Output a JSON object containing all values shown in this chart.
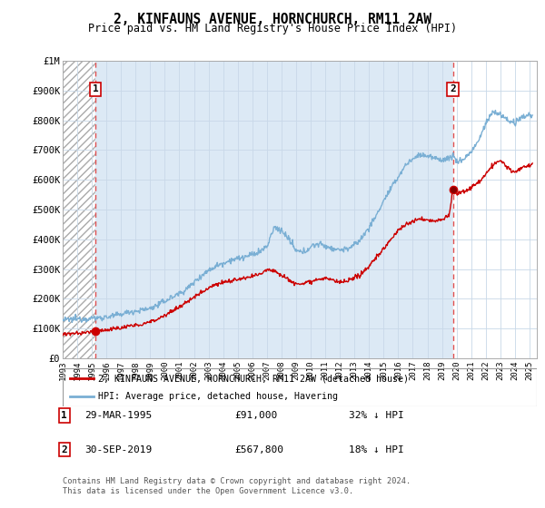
{
  "title": "2, KINFAUNS AVENUE, HORNCHURCH, RM11 2AW",
  "subtitle": "Price paid vs. HM Land Registry's House Price Index (HPI)",
  "ylim": [
    0,
    1000000
  ],
  "yticks": [
    0,
    100000,
    200000,
    300000,
    400000,
    500000,
    600000,
    700000,
    800000,
    900000,
    1000000
  ],
  "ytick_labels": [
    "£0",
    "£100K",
    "£200K",
    "£300K",
    "£400K",
    "£500K",
    "£600K",
    "£700K",
    "£800K",
    "£900K",
    "£1M"
  ],
  "xlim_start": 1993.0,
  "xlim_end": 2025.5,
  "xticks": [
    1993,
    1994,
    1995,
    1996,
    1997,
    1998,
    1999,
    2000,
    2001,
    2002,
    2003,
    2004,
    2005,
    2006,
    2007,
    2008,
    2009,
    2010,
    2011,
    2012,
    2013,
    2014,
    2015,
    2016,
    2017,
    2018,
    2019,
    2020,
    2021,
    2022,
    2023,
    2024,
    2025
  ],
  "sale1_year": 1995.24,
  "sale1_price": 91000,
  "sale2_year": 2019.75,
  "sale2_price": 567800,
  "sale1_label": "1",
  "sale2_label": "2",
  "sale1_date": "29-MAR-1995",
  "sale1_amount": "£91,000",
  "sale1_hpi": "32% ↓ HPI",
  "sale2_date": "30-SEP-2019",
  "sale2_amount": "£567,800",
  "sale2_hpi": "18% ↓ HPI",
  "legend_line1": "2, KINFAUNS AVENUE, HORNCHURCH, RM11 2AW (detached house)",
  "legend_line2": "HPI: Average price, detached house, Havering",
  "footer": "Contains HM Land Registry data © Crown copyright and database right 2024.\nThis data is licensed under the Open Government Licence v3.0.",
  "line_color_red": "#cc0000",
  "line_color_blue": "#7aafd4",
  "background_blue": "#dce9f5",
  "grid_color": "#c8d8e8",
  "dashed_line_color": "#e05050",
  "hpi_anchors": [
    [
      1993.0,
      128000
    ],
    [
      1993.5,
      130000
    ],
    [
      1994.0,
      132000
    ],
    [
      1994.5,
      133000
    ],
    [
      1995.0,
      134000
    ],
    [
      1995.5,
      136000
    ],
    [
      1996.0,
      138000
    ],
    [
      1996.5,
      142000
    ],
    [
      1997.0,
      148000
    ],
    [
      1997.5,
      155000
    ],
    [
      1998.0,
      158000
    ],
    [
      1998.5,
      162000
    ],
    [
      1999.0,
      168000
    ],
    [
      1999.5,
      178000
    ],
    [
      2000.0,
      192000
    ],
    [
      2000.5,
      205000
    ],
    [
      2001.0,
      218000
    ],
    [
      2001.5,
      232000
    ],
    [
      2002.0,
      255000
    ],
    [
      2002.5,
      278000
    ],
    [
      2003.0,
      295000
    ],
    [
      2003.5,
      310000
    ],
    [
      2004.0,
      320000
    ],
    [
      2004.5,
      330000
    ],
    [
      2005.0,
      335000
    ],
    [
      2005.5,
      340000
    ],
    [
      2006.0,
      348000
    ],
    [
      2006.5,
      358000
    ],
    [
      2007.0,
      375000
    ],
    [
      2007.5,
      440000
    ],
    [
      2008.0,
      430000
    ],
    [
      2008.5,
      400000
    ],
    [
      2009.0,
      360000
    ],
    [
      2009.5,
      355000
    ],
    [
      2010.0,
      375000
    ],
    [
      2010.5,
      385000
    ],
    [
      2011.0,
      378000
    ],
    [
      2011.5,
      368000
    ],
    [
      2012.0,
      365000
    ],
    [
      2012.5,
      368000
    ],
    [
      2013.0,
      380000
    ],
    [
      2013.5,
      405000
    ],
    [
      2014.0,
      440000
    ],
    [
      2014.5,
      480000
    ],
    [
      2015.0,
      530000
    ],
    [
      2015.5,
      570000
    ],
    [
      2016.0,
      610000
    ],
    [
      2016.5,
      650000
    ],
    [
      2017.0,
      670000
    ],
    [
      2017.5,
      685000
    ],
    [
      2018.0,
      680000
    ],
    [
      2018.5,
      672000
    ],
    [
      2019.0,
      668000
    ],
    [
      2019.5,
      672000
    ],
    [
      2019.75,
      685000
    ],
    [
      2020.0,
      660000
    ],
    [
      2020.5,
      670000
    ],
    [
      2021.0,
      695000
    ],
    [
      2021.5,
      730000
    ],
    [
      2022.0,
      790000
    ],
    [
      2022.5,
      830000
    ],
    [
      2023.0,
      820000
    ],
    [
      2023.5,
      800000
    ],
    [
      2024.0,
      790000
    ],
    [
      2024.5,
      810000
    ],
    [
      2025.0,
      820000
    ],
    [
      2025.2,
      815000
    ]
  ],
  "red_anchors": [
    [
      1993.0,
      80000
    ],
    [
      1993.5,
      82000
    ],
    [
      1994.0,
      83000
    ],
    [
      1994.5,
      85000
    ],
    [
      1995.0,
      88000
    ],
    [
      1995.24,
      91000
    ],
    [
      1995.5,
      92000
    ],
    [
      1996.0,
      95000
    ],
    [
      1996.5,
      98000
    ],
    [
      1997.0,
      102000
    ],
    [
      1997.5,
      107000
    ],
    [
      1998.0,
      110000
    ],
    [
      1998.5,
      115000
    ],
    [
      1999.0,
      122000
    ],
    [
      1999.5,
      132000
    ],
    [
      2000.0,
      145000
    ],
    [
      2000.5,
      158000
    ],
    [
      2001.0,
      172000
    ],
    [
      2001.5,
      188000
    ],
    [
      2002.0,
      205000
    ],
    [
      2002.5,
      222000
    ],
    [
      2003.0,
      238000
    ],
    [
      2003.5,
      248000
    ],
    [
      2004.0,
      255000
    ],
    [
      2004.5,
      260000
    ],
    [
      2005.0,
      265000
    ],
    [
      2005.5,
      268000
    ],
    [
      2006.0,
      275000
    ],
    [
      2006.5,
      282000
    ],
    [
      2007.0,
      300000
    ],
    [
      2007.5,
      295000
    ],
    [
      2008.0,
      280000
    ],
    [
      2008.5,
      265000
    ],
    [
      2009.0,
      248000
    ],
    [
      2009.5,
      252000
    ],
    [
      2010.0,
      260000
    ],
    [
      2010.5,
      265000
    ],
    [
      2011.0,
      268000
    ],
    [
      2011.5,
      262000
    ],
    [
      2012.0,
      255000
    ],
    [
      2012.5,
      258000
    ],
    [
      2013.0,
      268000
    ],
    [
      2013.5,
      285000
    ],
    [
      2014.0,
      310000
    ],
    [
      2014.5,
      340000
    ],
    [
      2015.0,
      368000
    ],
    [
      2015.5,
      400000
    ],
    [
      2016.0,
      430000
    ],
    [
      2016.5,
      450000
    ],
    [
      2017.0,
      460000
    ],
    [
      2017.5,
      468000
    ],
    [
      2018.0,
      465000
    ],
    [
      2018.5,
      460000
    ],
    [
      2019.0,
      468000
    ],
    [
      2019.5,
      480000
    ],
    [
      2019.75,
      567800
    ],
    [
      2020.0,
      555000
    ],
    [
      2020.5,
      560000
    ],
    [
      2021.0,
      575000
    ],
    [
      2021.5,
      590000
    ],
    [
      2022.0,
      620000
    ],
    [
      2022.5,
      650000
    ],
    [
      2023.0,
      665000
    ],
    [
      2023.5,
      640000
    ],
    [
      2024.0,
      625000
    ],
    [
      2024.5,
      640000
    ],
    [
      2025.0,
      650000
    ],
    [
      2025.2,
      648000
    ]
  ]
}
